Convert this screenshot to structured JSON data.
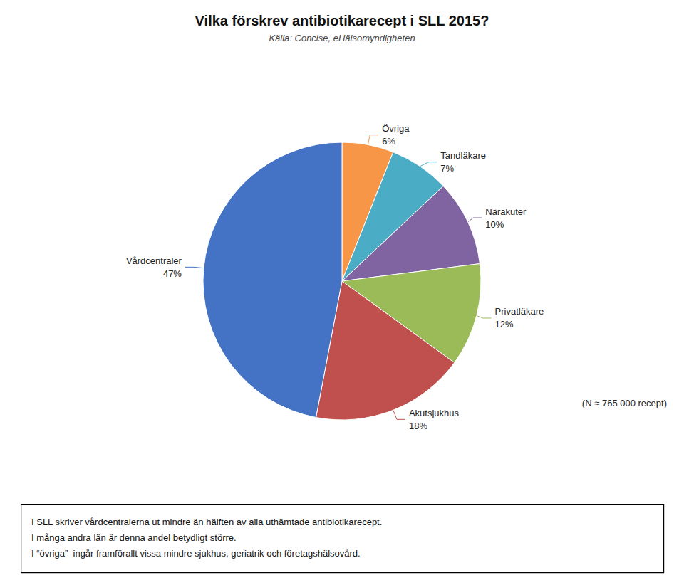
{
  "chart_data": {
    "type": "pie",
    "title": "Vilka förskrev antibiotikarecept i SLL 2015?",
    "subtitle": "Källa: Concise, eHälsomyndigheten",
    "categories": [
      "Övriga",
      "Tandläkare",
      "Närakuter",
      "Privatläkare",
      "Akutsjukhus",
      "Vårdcentraler"
    ],
    "values": [
      6,
      7,
      10,
      12,
      18,
      47
    ],
    "value_labels": [
      "6%",
      "7%",
      "10%",
      "12%",
      "18%",
      "47%"
    ],
    "data_labels": true,
    "colors": [
      "#F79646",
      "#4BACC6",
      "#8064A2",
      "#9BBB59",
      "#C0504D",
      "#4472C4"
    ],
    "note": "(N ≈ 765 000 recept)",
    "footer": [
      "I SLL skriver vårdcentralerna ut mindre än hälften av alla uthämtade antibiotikarecept.",
      "I många andra län är denna andel betydligt större.",
      "I “övriga”  ingår framförallt vissa mindre sjukhus, geriatrik och företagshälsovård."
    ]
  }
}
